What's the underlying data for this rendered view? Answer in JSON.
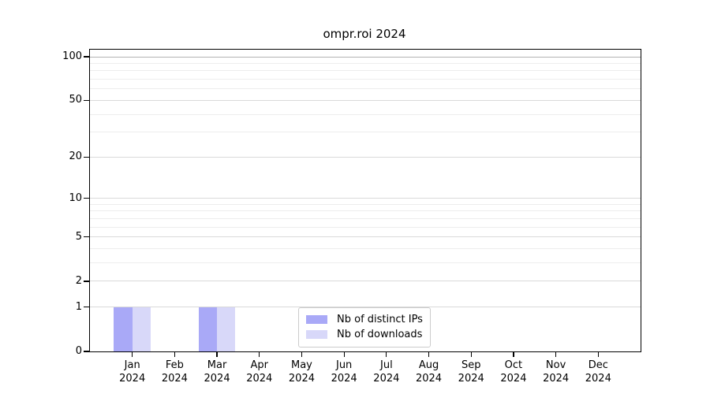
{
  "chart_data": {
    "type": "bar",
    "title": "ompr.roi 2024",
    "categories": [
      "Jan",
      "Feb",
      "Mar",
      "Apr",
      "May",
      "Jun",
      "Jul",
      "Aug",
      "Sep",
      "Oct",
      "Nov",
      "Dec"
    ],
    "category_year": "2024",
    "series": [
      {
        "name": "Nb of distinct IPs",
        "color": "#a9a9f7",
        "values": [
          1,
          0,
          1,
          0,
          0,
          0,
          0,
          0,
          0,
          0,
          0,
          0
        ]
      },
      {
        "name": "Nb of downloads",
        "color": "#d8d8f9",
        "values": [
          1,
          0,
          1,
          0,
          0,
          0,
          0,
          0,
          0,
          0,
          0,
          0
        ]
      }
    ],
    "y_axis": {
      "scale": "log1p",
      "tick_values": [
        0,
        1,
        2,
        5,
        10,
        20,
        50,
        100
      ],
      "tick_labels": [
        "0",
        "1",
        "2",
        "5",
        "10",
        "20",
        "50",
        "100"
      ],
      "top_value": 112,
      "minor_gridline_values": [
        3,
        4,
        6,
        7,
        8,
        9,
        30,
        40,
        60,
        70,
        80,
        90
      ]
    },
    "legend": {
      "position": "lower center",
      "entries": [
        "Nb of distinct IPs",
        "Nb of downloads"
      ]
    },
    "grid": "on",
    "colors": {
      "background": "#ffffff",
      "axis": "#000000",
      "grid_minor": "#ededed",
      "grid_major": "#d9d9d9",
      "grid_top": "#b3b3b3",
      "bar_ips": "#a9a9f7",
      "bar_downloads": "#d8d8f9",
      "legend_border": "#cccccc"
    }
  }
}
